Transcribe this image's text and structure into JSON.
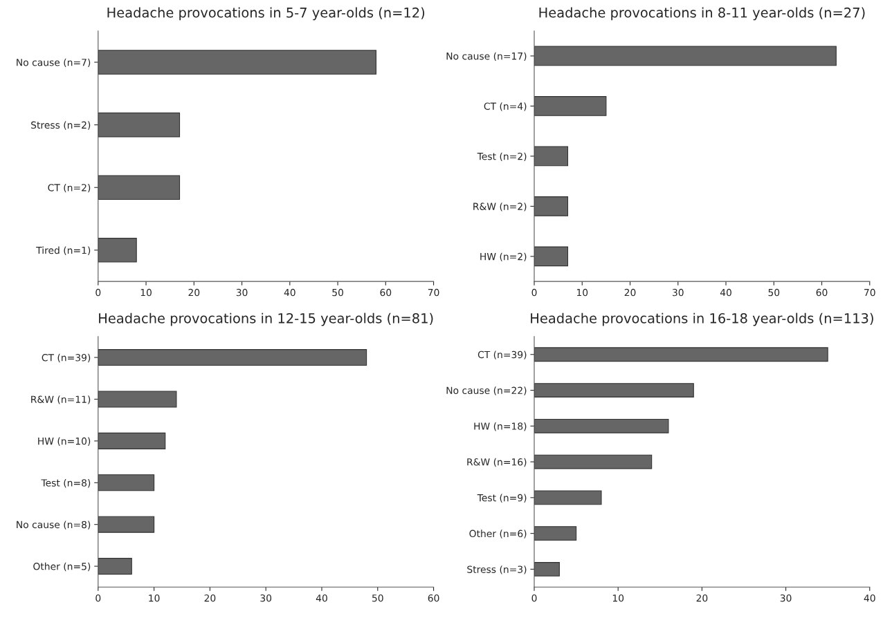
{
  "chart_data": [
    {
      "type": "bar",
      "orientation": "horizontal",
      "title": "Headache provocations in 5-7 year-olds (n=12)",
      "categories": [
        "No cause (n=7)",
        "Stress (n=2)",
        "CT (n=2)",
        "Tired (n=1)"
      ],
      "values": [
        58,
        17,
        17,
        8
      ],
      "color": "#666666",
      "xlim": [
        0,
        70
      ],
      "xticks": [
        0,
        10,
        20,
        30,
        40,
        50,
        60,
        70
      ],
      "grid": false,
      "legend": false
    },
    {
      "type": "bar",
      "orientation": "horizontal",
      "title": "Headache provocations in 8-11 year-olds (n=27)",
      "categories": [
        "No cause (n=17)",
        "CT (n=4)",
        "Test (n=2)",
        "R&W (n=2)",
        "HW (n=2)"
      ],
      "values": [
        63,
        15,
        7,
        7,
        7
      ],
      "color": "#666666",
      "xlim": [
        0,
        70
      ],
      "xticks": [
        0,
        10,
        20,
        30,
        40,
        50,
        60,
        70
      ],
      "grid": false,
      "legend": false
    },
    {
      "type": "bar",
      "orientation": "horizontal",
      "title": "Headache provocations in 12-15 year-olds (n=81)",
      "categories": [
        "CT (n=39)",
        "R&W (n=11)",
        "HW (n=10)",
        "Test (n=8)",
        "No cause (n=8)",
        "Other (n=5)"
      ],
      "values": [
        48,
        14,
        12,
        10,
        10,
        6
      ],
      "color": "#666666",
      "xlim": [
        0,
        60
      ],
      "xticks": [
        0,
        10,
        20,
        30,
        40,
        50,
        60
      ],
      "grid": false,
      "legend": false
    },
    {
      "type": "bar",
      "orientation": "horizontal",
      "title": "Headache provocations in 16-18 year-olds (n=113)",
      "categories": [
        "CT (n=39)",
        "No cause (n=22)",
        "HW (n=18)",
        "R&W (n=16)",
        "Test (n=9)",
        "Other (n=6)",
        "Stress (n=3)"
      ],
      "values": [
        35,
        19,
        16,
        14,
        8,
        5,
        3
      ],
      "color": "#666666",
      "xlim": [
        0,
        40
      ],
      "xticks": [
        0,
        10,
        20,
        30,
        40
      ],
      "grid": false,
      "legend": false
    }
  ]
}
